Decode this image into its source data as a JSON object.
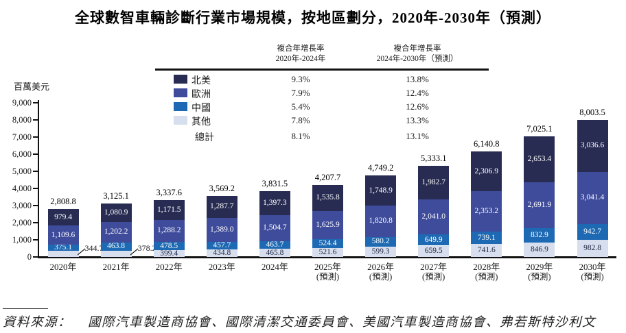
{
  "title": "全球數智車輛診斷行業市場規模，按地區劃分，2020年-2030年（預測）",
  "y_axis": {
    "unit_label": "百萬美元",
    "ticks": [
      {
        "value": 9000,
        "label": "9,000"
      },
      {
        "value": 8000,
        "label": "8,000"
      },
      {
        "value": 7000,
        "label": "7,000"
      },
      {
        "value": 6000,
        "label": "6,000"
      },
      {
        "value": 5000,
        "label": "5,000"
      },
      {
        "value": 4000,
        "label": "4,000"
      },
      {
        "value": 3000,
        "label": "3,000"
      },
      {
        "value": 2000,
        "label": "2,000"
      },
      {
        "value": 1000,
        "label": "1,000"
      },
      {
        "value": 0,
        "label": "0"
      }
    ]
  },
  "cagr_header_1": {
    "line1": "複合年增長率",
    "line2": "2020年-2024年"
  },
  "cagr_header_2": {
    "line1": "複合年增長率",
    "line2": "2024年-2030年（預測）"
  },
  "legend_cagr": {
    "rows": [
      {
        "label": "北美",
        "swatch": "#282c52",
        "cagr1": "9.3%",
        "cagr2": "13.8%"
      },
      {
        "label": "歐洲",
        "swatch": "#3f4c9b",
        "cagr1": "7.9%",
        "cagr2": "12.4%"
      },
      {
        "label": "中國",
        "swatch": "#1d69b3",
        "cagr1": "5.4%",
        "cagr2": "12.6%"
      },
      {
        "label": "其他",
        "swatch": "#d7dfee",
        "cagr1": "7.8%",
        "cagr2": "13.3%"
      },
      {
        "label": "總計",
        "swatch": "",
        "cagr1": "8.1%",
        "cagr2": "13.1%"
      }
    ]
  },
  "chart_data": {
    "type": "bar",
    "stacked": true,
    "unit": "百萬美元",
    "ylim": [
      0,
      9000
    ],
    "grid": false,
    "legend_position": "top-left",
    "stack_order_bottom_to_top": [
      "其他",
      "中國",
      "歐洲",
      "北美"
    ],
    "categories": [
      {
        "label": "2020年",
        "sublabel": "",
        "other_label_outside": true
      },
      {
        "label": "2021年",
        "sublabel": "",
        "other_label_outside": true
      },
      {
        "label": "2022年",
        "sublabel": "",
        "other_label_outside": false
      },
      {
        "label": "2023年",
        "sublabel": "",
        "other_label_outside": false
      },
      {
        "label": "2024年",
        "sublabel": "",
        "other_label_outside": false
      },
      {
        "label": "2025年",
        "sublabel": "(預測)",
        "other_label_outside": false
      },
      {
        "label": "2026年",
        "sublabel": "(預測)",
        "other_label_outside": false
      },
      {
        "label": "2027年",
        "sublabel": "(預測)",
        "other_label_outside": false
      },
      {
        "label": "2028年",
        "sublabel": "(預測)",
        "other_label_outside": false
      },
      {
        "label": "2029年",
        "sublabel": "(預測)",
        "other_label_outside": false
      },
      {
        "label": "2030年",
        "sublabel": "(預測)",
        "other_label_outside": false
      }
    ],
    "series": [
      {
        "name": "北美",
        "color": "#282c52",
        "label_color": "#ffffff",
        "values": [
          979.4,
          1080.9,
          1171.5,
          1287.7,
          1397.3,
          1535.8,
          1748.9,
          1982.7,
          2306.9,
          2653.4,
          3036.6
        ]
      },
      {
        "name": "歐洲",
        "color": "#3f4c9b",
        "label_color": "#ffffff",
        "values": [
          1109.6,
          1202.2,
          1288.2,
          1389.0,
          1504.7,
          1625.9,
          1820.8,
          2041.0,
          2353.2,
          2691.9,
          3041.4
        ]
      },
      {
        "name": "中國",
        "color": "#1d69b3",
        "label_color": "#ffffff",
        "values": [
          375.1,
          463.8,
          478.5,
          457.7,
          463.7,
          524.4,
          580.2,
          649.9,
          739.1,
          832.9,
          942.7
        ]
      },
      {
        "name": "其他",
        "color": "#d7dfee",
        "label_color": "#1c2340",
        "values": [
          344.7,
          378.2,
          399.4,
          434.8,
          465.8,
          521.6,
          599.3,
          659.5,
          741.6,
          846.9,
          982.8
        ]
      }
    ],
    "totals": [
      2808.8,
      3125.1,
      3337.6,
      3569.2,
      3831.5,
      4207.7,
      4749.2,
      5333.1,
      6140.8,
      7025.1,
      8003.5
    ]
  },
  "footer": {
    "label": "資料來源：",
    "text": "國際汽車製造商協會、國際清潔交通委員會、美國汽車製造商協會、弗若斯特沙利文"
  }
}
